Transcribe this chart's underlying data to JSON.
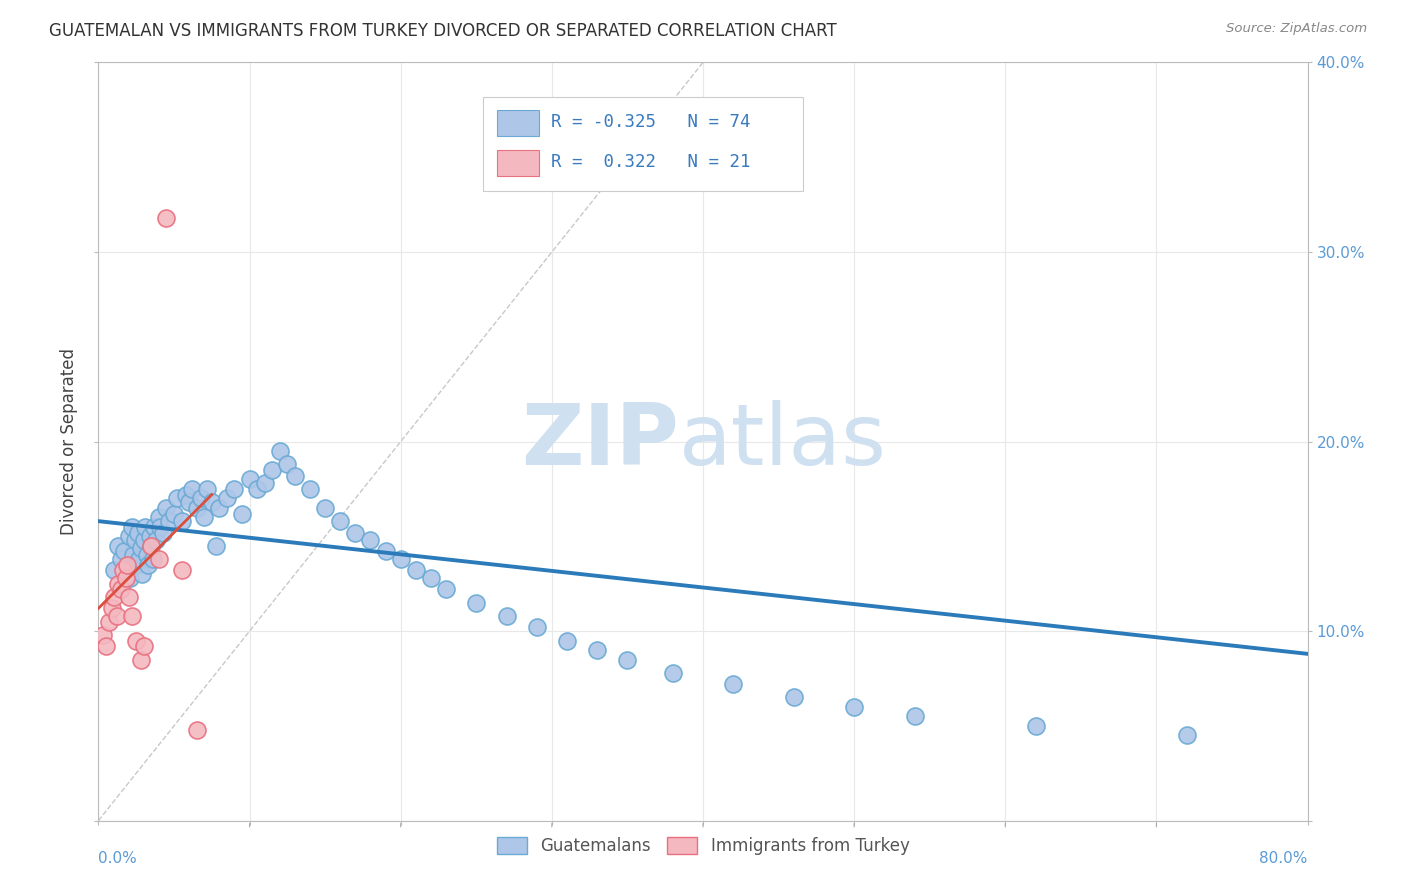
{
  "title": "GUATEMALAN VS IMMIGRANTS FROM TURKEY DIVORCED OR SEPARATED CORRELATION CHART",
  "source": "Source: ZipAtlas.com",
  "ylabel": "Divorced or Separated",
  "xlim": [
    0.0,
    0.8
  ],
  "ylim": [
    0.0,
    0.4
  ],
  "xticks": [
    0.0,
    0.1,
    0.2,
    0.3,
    0.4,
    0.5,
    0.6,
    0.7,
    0.8
  ],
  "yticks": [
    0.0,
    0.1,
    0.2,
    0.3,
    0.4
  ],
  "background_color": "#ffffff",
  "grid_color": "#e8e8e8",
  "watermark_zip": "ZIP",
  "watermark_atlas": "atlas",
  "watermark_color": "#cfe0f0",
  "blue_fill": "#aec6e8",
  "blue_edge": "#6aaad4",
  "pink_fill": "#f4b8c0",
  "pink_edge": "#e87080",
  "blue_line_color": "#2b7bba",
  "pink_line_color": "#d94f3d",
  "diag_line_color": "#c8c8c8",
  "legend_R_blue": "-0.325",
  "legend_N_blue": "74",
  "legend_R_pink": "0.322",
  "legend_N_pink": "21",
  "blue_trend_x": [
    0.0,
    0.8
  ],
  "blue_trend_y": [
    0.158,
    0.088
  ],
  "pink_trend_x": [
    0.0,
    0.075
  ],
  "pink_trend_y": [
    0.112,
    0.172
  ],
  "blue_scatter_x": [
    0.01,
    0.013,
    0.015,
    0.017,
    0.02,
    0.021,
    0.022,
    0.023,
    0.024,
    0.025,
    0.026,
    0.027,
    0.028,
    0.029,
    0.03,
    0.031,
    0.032,
    0.033,
    0.034,
    0.035,
    0.036,
    0.037,
    0.038,
    0.04,
    0.041,
    0.043,
    0.045,
    0.047,
    0.05,
    0.052,
    0.055,
    0.058,
    0.06,
    0.062,
    0.065,
    0.068,
    0.07,
    0.072,
    0.075,
    0.078,
    0.08,
    0.085,
    0.09,
    0.095,
    0.1,
    0.105,
    0.11,
    0.115,
    0.12,
    0.125,
    0.13,
    0.14,
    0.15,
    0.16,
    0.17,
    0.18,
    0.19,
    0.2,
    0.21,
    0.22,
    0.23,
    0.25,
    0.27,
    0.29,
    0.31,
    0.33,
    0.35,
    0.38,
    0.42,
    0.46,
    0.5,
    0.54,
    0.62,
    0.72
  ],
  "blue_scatter_y": [
    0.132,
    0.145,
    0.138,
    0.142,
    0.15,
    0.128,
    0.155,
    0.14,
    0.148,
    0.135,
    0.152,
    0.138,
    0.144,
    0.13,
    0.148,
    0.155,
    0.14,
    0.135,
    0.15,
    0.145,
    0.138,
    0.155,
    0.148,
    0.16,
    0.155,
    0.152,
    0.165,
    0.158,
    0.162,
    0.17,
    0.158,
    0.172,
    0.168,
    0.175,
    0.165,
    0.17,
    0.16,
    0.175,
    0.168,
    0.145,
    0.165,
    0.17,
    0.175,
    0.162,
    0.18,
    0.175,
    0.178,
    0.185,
    0.195,
    0.188,
    0.182,
    0.175,
    0.165,
    0.158,
    0.152,
    0.148,
    0.142,
    0.138,
    0.132,
    0.128,
    0.122,
    0.115,
    0.108,
    0.102,
    0.095,
    0.09,
    0.085,
    0.078,
    0.072,
    0.065,
    0.06,
    0.055,
    0.05,
    0.045
  ],
  "pink_scatter_x": [
    0.003,
    0.005,
    0.007,
    0.009,
    0.01,
    0.012,
    0.013,
    0.015,
    0.016,
    0.018,
    0.019,
    0.02,
    0.022,
    0.025,
    0.028,
    0.03,
    0.035,
    0.04,
    0.045,
    0.055,
    0.065
  ],
  "pink_scatter_y": [
    0.098,
    0.092,
    0.105,
    0.112,
    0.118,
    0.108,
    0.125,
    0.122,
    0.132,
    0.128,
    0.135,
    0.118,
    0.108,
    0.095,
    0.085,
    0.092,
    0.145,
    0.138,
    0.318,
    0.132,
    0.048
  ]
}
